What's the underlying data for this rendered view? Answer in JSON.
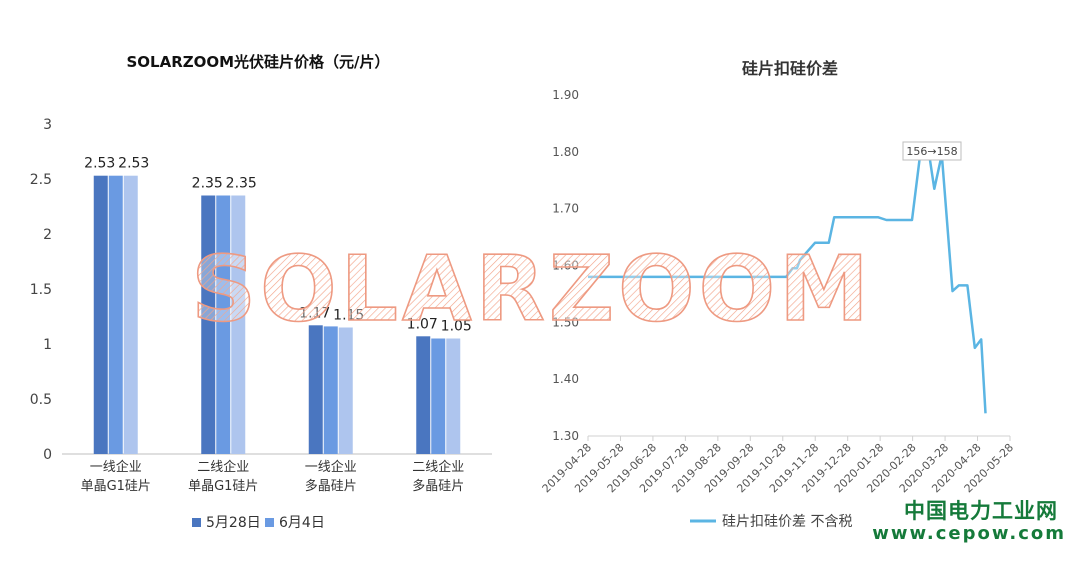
{
  "chart_data": [
    {
      "type": "bar",
      "title": "SOLARZOOM光伏硅片价格（元/片）",
      "categories": [
        [
          "一线企业",
          "单晶G1硅片"
        ],
        [
          "二线企业",
          "单晶G1硅片"
        ],
        [
          "一线企业",
          "多晶硅片"
        ],
        [
          "二线企业",
          "多晶硅片"
        ]
      ],
      "series": [
        {
          "name": "",
          "values": [
            2.53,
            2.35,
            1.17,
            1.07
          ],
          "color": "#4a76c0",
          "labels": [
            "2.53",
            "2.35",
            "1.17",
            "1.07"
          ]
        },
        {
          "name": "5月28日",
          "values": [
            2.53,
            2.35,
            1.16,
            1.05
          ],
          "color": "#6a9ae2",
          "labels": [
            "",
            "",
            "",
            ""
          ]
        },
        {
          "name": "6月4日",
          "values": [
            2.53,
            2.35,
            1.15,
            1.05
          ],
          "color": "#aec5ee",
          "labels": [
            "2.53",
            "2.35",
            "1.15",
            "1.05"
          ]
        }
      ],
      "legend_entries": [
        {
          "name": "5月28日",
          "color": "#4a76c0"
        },
        {
          "name": "6月4日",
          "color": "#6a9ae2"
        }
      ],
      "ylim": [
        0,
        3
      ],
      "yticks": [
        "0",
        "0.5",
        "1",
        "1.5",
        "2",
        "2.5",
        "3"
      ],
      "legend_position": "bottom",
      "grid": false
    },
    {
      "type": "line",
      "title": "硅片扣硅价差",
      "series_name": "硅片扣硅价差 不含税",
      "color": "#5bb5e3",
      "ylim": [
        1.3,
        1.9
      ],
      "yticks": [
        "1.30",
        "1.40",
        "1.50",
        "1.60",
        "1.70",
        "1.80",
        "1.90"
      ],
      "xlim": [
        "2019-04-28",
        "2020-05-28"
      ],
      "xticks": [
        "2019-04-28",
        "2019-05-28",
        "2019-06-28",
        "2019-07-28",
        "2019-08-28",
        "2019-09-28",
        "2019-10-28",
        "2019-11-28",
        "2019-12-28",
        "2020-01-28",
        "2020-02-28",
        "2020-03-28",
        "2020-04-28",
        "2020-05-28"
      ],
      "points": [
        [
          "2019-04-28",
          1.58
        ],
        [
          "2019-05-05",
          1.58
        ],
        [
          "2019-06-05",
          1.58
        ],
        [
          "2019-07-05",
          1.58
        ],
        [
          "2019-08-05",
          1.58
        ],
        [
          "2019-09-05",
          1.58
        ],
        [
          "2019-10-05",
          1.58
        ],
        [
          "2019-10-31",
          1.58
        ],
        [
          "2019-11-06",
          1.595
        ],
        [
          "2019-11-10",
          1.595
        ],
        [
          "2019-11-13",
          1.61
        ],
        [
          "2019-11-27",
          1.64
        ],
        [
          "2019-12-05",
          1.64
        ],
        [
          "2019-12-10",
          1.64
        ],
        [
          "2019-12-15",
          1.685
        ],
        [
          "2020-01-01",
          1.685
        ],
        [
          "2020-01-15",
          1.685
        ],
        [
          "2020-01-25",
          1.685
        ],
        [
          "2020-02-02",
          1.68
        ],
        [
          "2020-02-15",
          1.68
        ],
        [
          "2020-02-26",
          1.68
        ],
        [
          "2020-03-05",
          1.8
        ],
        [
          "2020-03-12",
          1.81
        ],
        [
          "2020-03-18",
          1.735
        ],
        [
          "2020-03-25",
          1.795
        ],
        [
          "2020-04-04",
          1.555
        ],
        [
          "2020-04-10",
          1.565
        ],
        [
          "2020-04-18",
          1.565
        ],
        [
          "2020-04-25",
          1.455
        ],
        [
          "2020-05-01",
          1.47
        ],
        [
          "2020-05-05",
          1.34
        ]
      ],
      "annotation": "156→158",
      "annotation_at": "2020-03-08",
      "legend_position": "bottom",
      "grid": false
    }
  ],
  "watermark": "SOLARZOOM",
  "site_name": "中国电力工业网",
  "site_url": "www.cepow.com"
}
